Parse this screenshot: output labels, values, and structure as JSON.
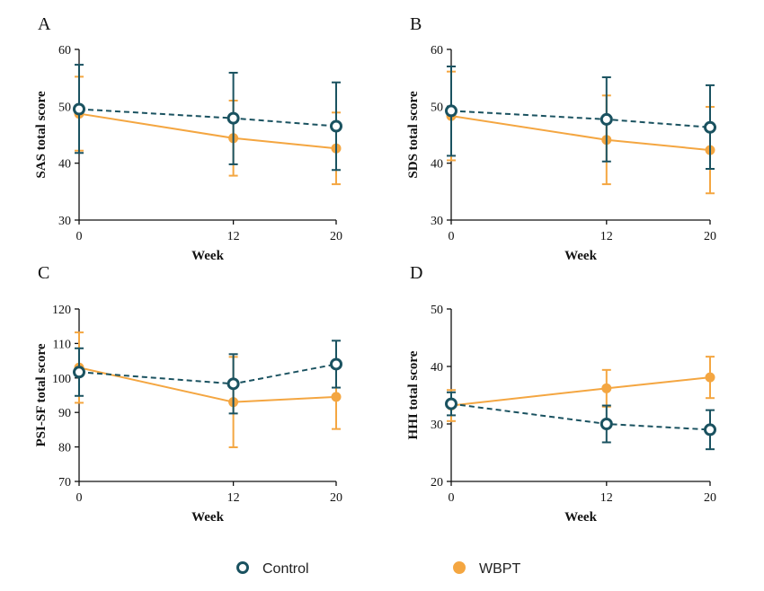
{
  "colors": {
    "control": "#1a5260",
    "wbpt": "#f4a641",
    "axis": "#111111"
  },
  "legend": [
    {
      "label": "Control",
      "marker": "hollow-circle",
      "color": "#1a5260"
    },
    {
      "label": "WBPT",
      "marker": "filled-circle",
      "color": "#f4a641"
    }
  ],
  "chart_data": [
    {
      "panel": "A",
      "type": "line",
      "xlabel": "Week",
      "ylabel": "SAS total score",
      "x": [
        0,
        12,
        20
      ],
      "xticks": [
        0,
        12,
        20
      ],
      "ylim": [
        30,
        60
      ],
      "yticks": [
        30,
        40,
        50,
        60
      ],
      "series": [
        {
          "name": "Control",
          "style": "dashed",
          "marker": "hollow-circle",
          "values": [
            49.5,
            47.9,
            46.5
          ],
          "err_low": [
            41.8,
            39.8,
            38.8
          ],
          "err_high": [
            57.3,
            55.9,
            54.2
          ]
        },
        {
          "name": "WBPT",
          "style": "solid",
          "marker": "filled-circle",
          "values": [
            48.7,
            44.4,
            42.6
          ],
          "err_low": [
            42.2,
            37.8,
            36.3
          ],
          "err_high": [
            55.2,
            51.0,
            48.9
          ]
        }
      ]
    },
    {
      "panel": "B",
      "type": "line",
      "xlabel": "Week",
      "ylabel": "SDS total score",
      "x": [
        0,
        12,
        20
      ],
      "xticks": [
        0,
        12,
        20
      ],
      "ylim": [
        30,
        60
      ],
      "yticks": [
        30,
        40,
        50,
        60
      ],
      "series": [
        {
          "name": "Control",
          "style": "dashed",
          "marker": "hollow-circle",
          "values": [
            49.2,
            47.7,
            46.3
          ],
          "err_low": [
            41.3,
            40.3,
            39.0
          ],
          "err_high": [
            57.0,
            55.1,
            53.7
          ]
        },
        {
          "name": "WBPT",
          "style": "solid",
          "marker": "filled-circle",
          "values": [
            48.3,
            44.1,
            42.3
          ],
          "err_low": [
            40.5,
            36.3,
            34.7
          ],
          "err_high": [
            56.1,
            51.9,
            49.9
          ]
        }
      ]
    },
    {
      "panel": "C",
      "type": "line",
      "xlabel": "Week",
      "ylabel": "PSI-SF total score",
      "x": [
        0,
        12,
        20
      ],
      "xticks": [
        0,
        12,
        20
      ],
      "ylim": [
        70,
        120
      ],
      "yticks": [
        70,
        80,
        90,
        100,
        110,
        120
      ],
      "series": [
        {
          "name": "Control",
          "style": "dashed",
          "marker": "hollow-circle",
          "values": [
            101.7,
            98.3,
            104.0
          ],
          "err_low": [
            94.8,
            89.7,
            97.2
          ],
          "err_high": [
            108.6,
            106.9,
            110.8
          ]
        },
        {
          "name": "WBPT",
          "style": "solid",
          "marker": "filled-circle",
          "values": [
            103.0,
            93.0,
            94.5
          ],
          "err_low": [
            92.8,
            79.9,
            85.2
          ],
          "err_high": [
            113.2,
            106.1,
            103.8
          ]
        }
      ]
    },
    {
      "panel": "D",
      "type": "line",
      "xlabel": "Week",
      "ylabel": "HHI total score",
      "x": [
        0,
        12,
        20
      ],
      "xticks": [
        0,
        12,
        20
      ],
      "ylim": [
        20,
        50
      ],
      "yticks": [
        20,
        30,
        40,
        50
      ],
      "series": [
        {
          "name": "Control",
          "style": "dashed",
          "marker": "hollow-circle",
          "values": [
            33.5,
            30.0,
            29.0
          ],
          "err_low": [
            31.5,
            26.8,
            25.6
          ],
          "err_high": [
            35.5,
            33.2,
            32.4
          ]
        },
        {
          "name": "WBPT",
          "style": "solid",
          "marker": "filled-circle",
          "values": [
            33.2,
            36.2,
            38.1
          ],
          "err_low": [
            30.5,
            33.0,
            34.5
          ],
          "err_high": [
            35.9,
            39.4,
            41.7
          ]
        }
      ]
    }
  ]
}
